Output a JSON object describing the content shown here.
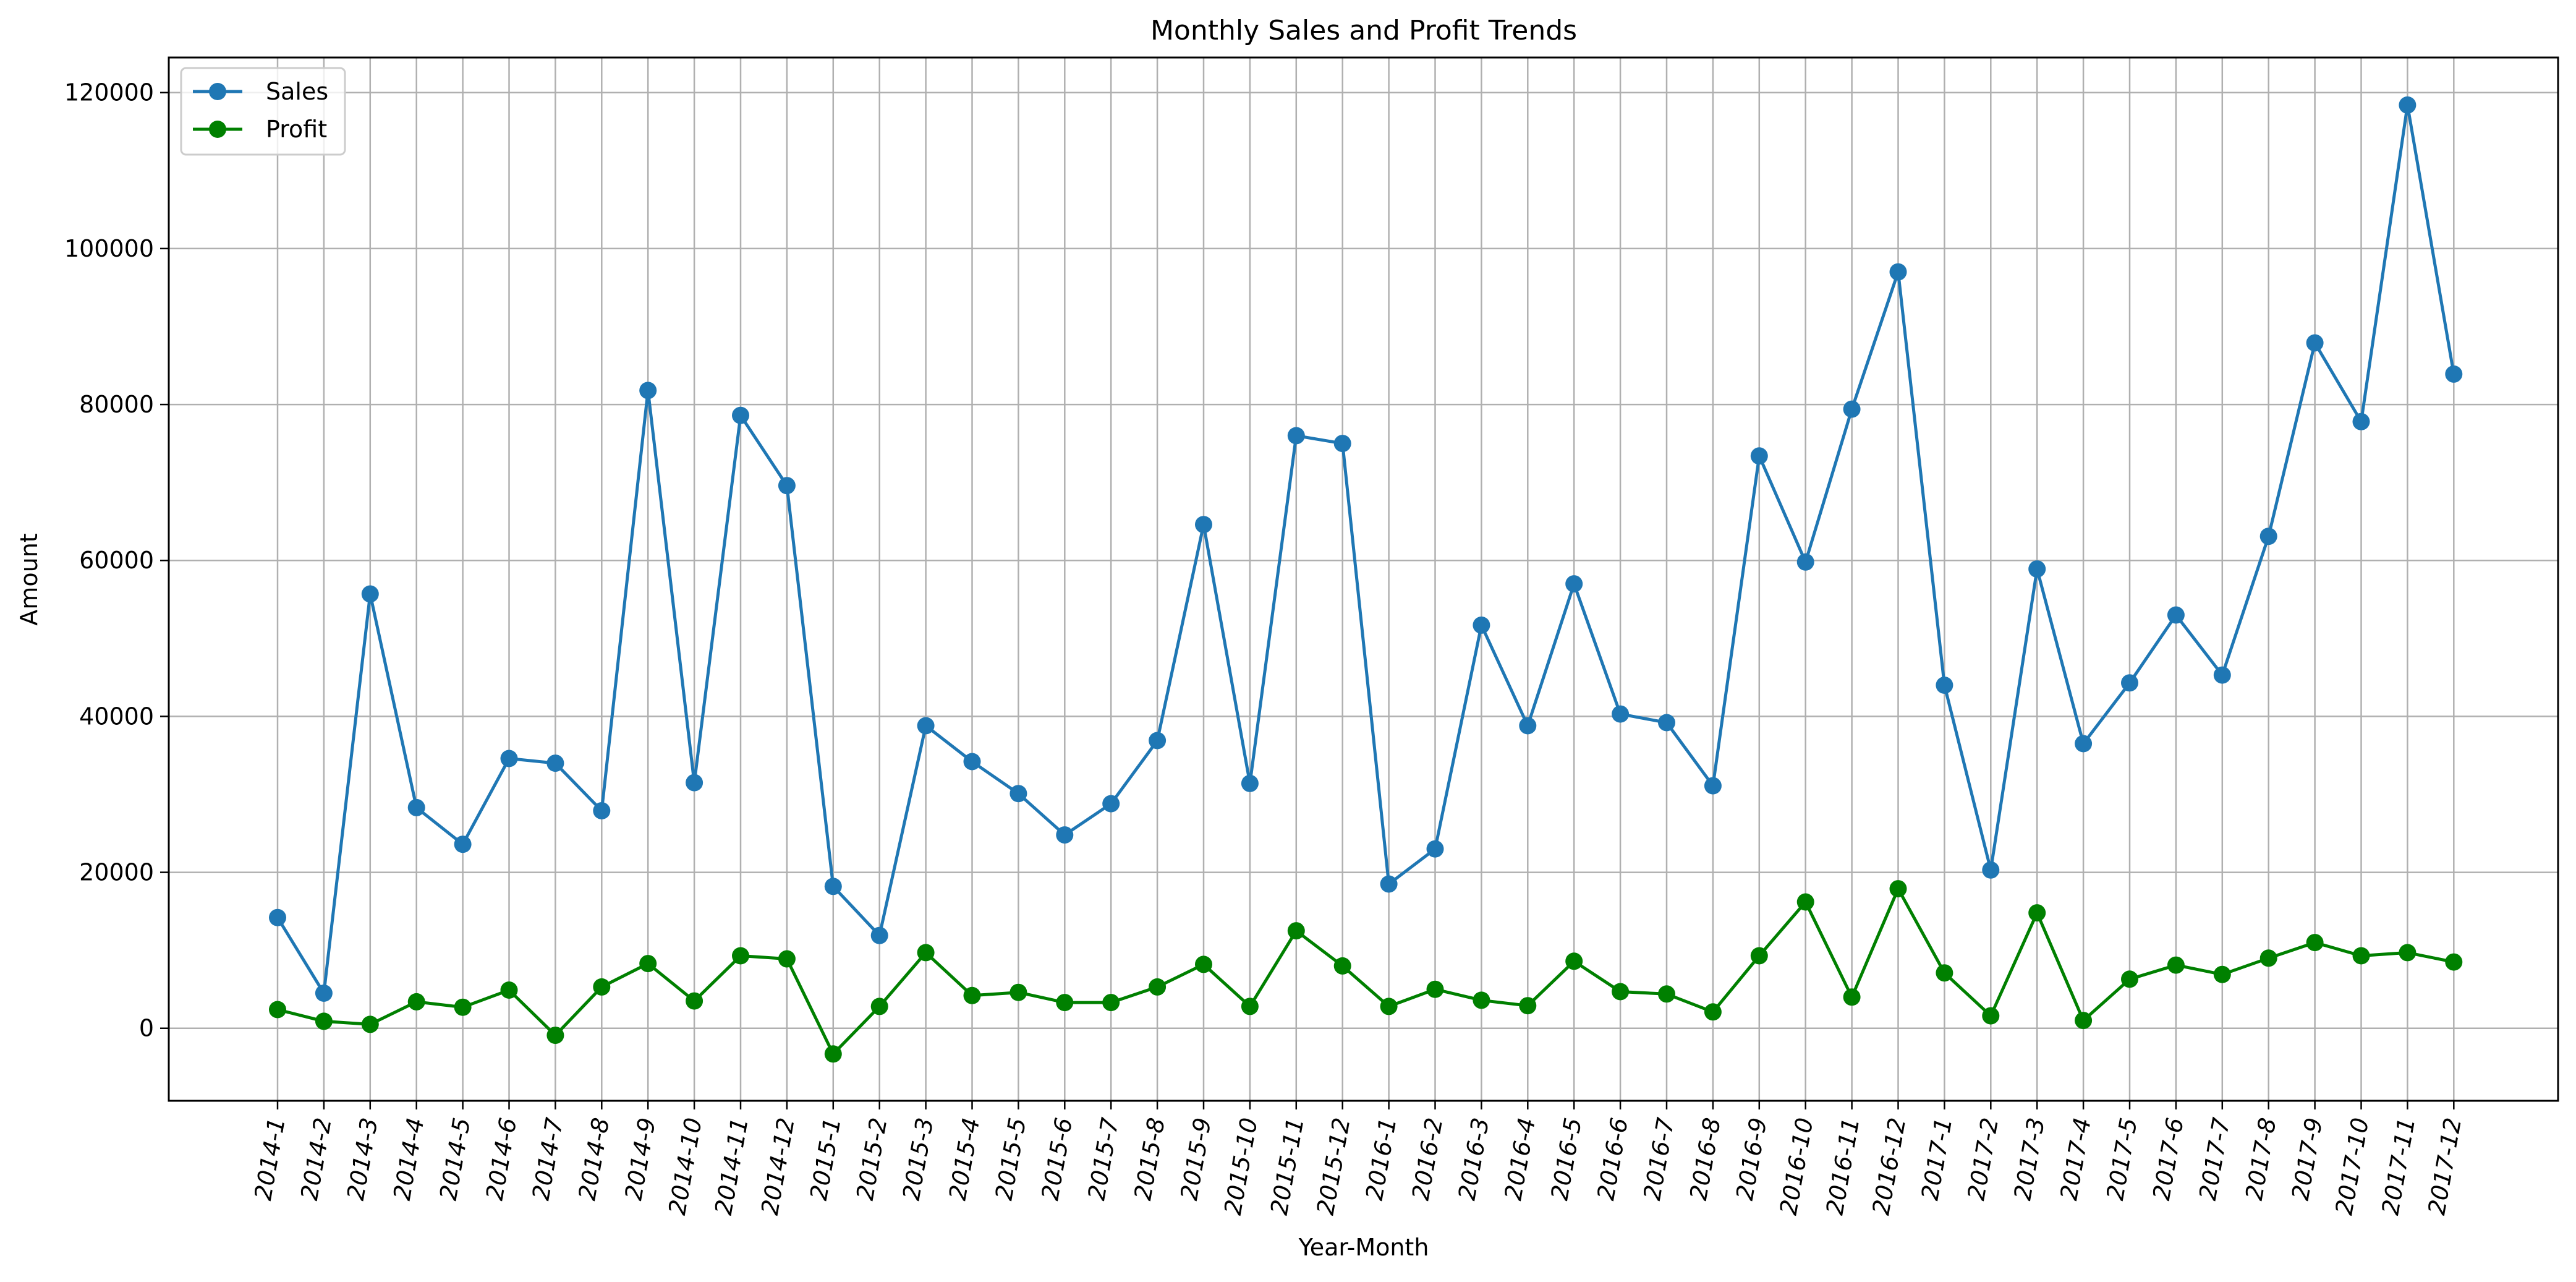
{
  "chart_data": {
    "type": "line",
    "title": "Monthly Sales and Profit Trends",
    "xlabel": "Year-Month",
    "ylabel": "Amount",
    "categories": [
      "2014-1",
      "2014-2",
      "2014-3",
      "2014-4",
      "2014-5",
      "2014-6",
      "2014-7",
      "2014-8",
      "2014-9",
      "2014-10",
      "2014-11",
      "2014-12",
      "2015-1",
      "2015-2",
      "2015-3",
      "2015-4",
      "2015-5",
      "2015-6",
      "2015-7",
      "2015-8",
      "2015-9",
      "2015-10",
      "2015-11",
      "2015-12",
      "2016-1",
      "2016-2",
      "2016-3",
      "2016-4",
      "2016-5",
      "2016-6",
      "2016-7",
      "2016-8",
      "2016-9",
      "2016-10",
      "2016-11",
      "2016-12",
      "2017-1",
      "2017-2",
      "2017-3",
      "2017-4",
      "2017-5",
      "2017-6",
      "2017-7",
      "2017-8",
      "2017-9",
      "2017-10",
      "2017-11",
      "2017-12"
    ],
    "series": [
      {
        "name": "Sales",
        "color": "#1f77b4",
        "values": [
          14200,
          4500,
          55700,
          28300,
          23600,
          34600,
          34000,
          27900,
          81800,
          31500,
          78600,
          69600,
          18200,
          11900,
          38800,
          34200,
          30100,
          24800,
          28800,
          36900,
          64600,
          31400,
          76000,
          75000,
          18500,
          23000,
          51700,
          38800,
          57000,
          40300,
          39200,
          31100,
          73400,
          59800,
          79400,
          97000,
          44000,
          20300,
          58900,
          36500,
          44300,
          53000,
          45300,
          63100,
          87900,
          77800,
          118400,
          83900
        ]
      },
      {
        "name": "Profit",
        "color": "#008000",
        "values": [
          2400,
          900,
          500,
          3400,
          2700,
          4900,
          -900,
          5300,
          8300,
          3500,
          9300,
          8900,
          -3300,
          2800,
          9700,
          4200,
          4600,
          3300,
          3300,
          5300,
          8200,
          2800,
          12500,
          8000,
          2800,
          5000,
          3600,
          2900,
          8600,
          4700,
          4400,
          2100,
          9300,
          16200,
          4000,
          17900,
          7100,
          1600,
          14800,
          1000,
          6300,
          8100,
          6900,
          9000,
          11000,
          9300,
          9700,
          8500
        ]
      }
    ],
    "y_ticks": [
      "0",
      "20000",
      "40000",
      "60000",
      "80000",
      "100000",
      "120000"
    ],
    "ylim": [
      -9300,
      124500
    ],
    "grid": true,
    "legend_position": "upper-left"
  }
}
